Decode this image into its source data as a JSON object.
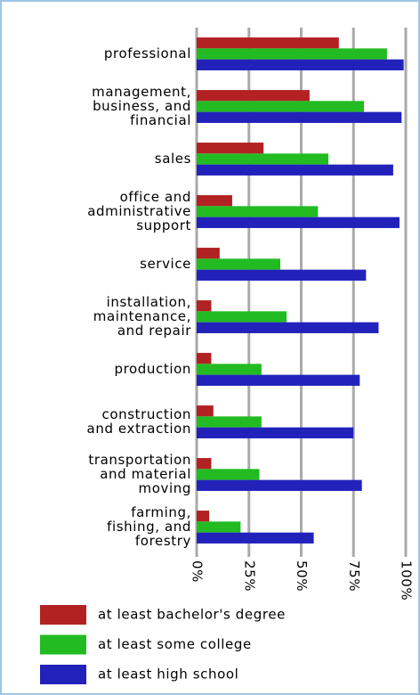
{
  "chart_data": {
    "type": "bar",
    "orientation": "horizontal",
    "categories": [
      [
        "professional"
      ],
      [
        "management,",
        "business, and",
        "financial"
      ],
      [
        "sales"
      ],
      [
        "office and",
        "administrative",
        "support"
      ],
      [
        "service"
      ],
      [
        "installation,",
        "maintenance,",
        "and repair"
      ],
      [
        "production"
      ],
      [
        "construction",
        "and extraction"
      ],
      [
        "transportation",
        "and material",
        "moving"
      ],
      [
        "farming,",
        "fishing, and",
        "forestry"
      ]
    ],
    "series": [
      {
        "name": "at least bachelor's degree",
        "color": "#b22222",
        "values": [
          68,
          54,
          32,
          17,
          11,
          7,
          7,
          8,
          7,
          6
        ]
      },
      {
        "name": "at least some college",
        "color": "#22bb22",
        "values": [
          91,
          80,
          63,
          58,
          40,
          43,
          31,
          31,
          30,
          21
        ]
      },
      {
        "name": "at least high school",
        "color": "#2222bb",
        "values": [
          99,
          98,
          94,
          97,
          81,
          87,
          78,
          75,
          79,
          56
        ]
      }
    ],
    "xlim": [
      0,
      100
    ],
    "xticks": [
      {
        "value": 0,
        "label": "0%"
      },
      {
        "value": 25,
        "label": "25%"
      },
      {
        "value": 50,
        "label": "50%"
      },
      {
        "value": 75,
        "label": "75%"
      },
      {
        "value": 100,
        "label": "100%"
      }
    ],
    "grid": true,
    "legend": "bottom"
  }
}
